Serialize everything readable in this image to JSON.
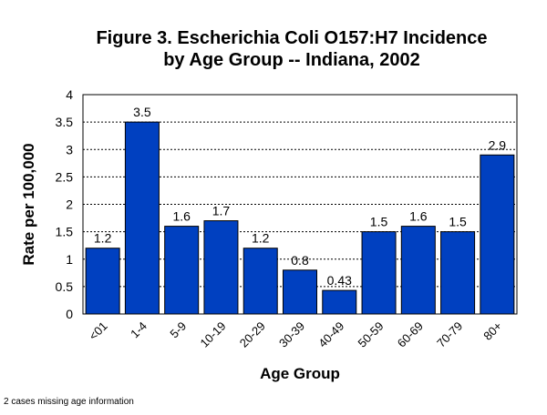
{
  "chart_data": {
    "type": "bar",
    "title_line1": "Figure 3. Escherichia Coli O157:H7 Incidence",
    "title_line2": "by Age Group -- Indiana, 2002",
    "xlabel": "Age Group",
    "ylabel": "Rate per 100,000",
    "categories": [
      "<01",
      "1-4",
      "5-9",
      "10-19",
      "20-29",
      "30-39",
      "40-49",
      "50-59",
      "60-69",
      "70-79",
      "80+"
    ],
    "values": [
      1.2,
      3.5,
      1.6,
      1.7,
      1.2,
      0.8,
      0.43,
      1.5,
      1.6,
      1.5,
      2.9
    ],
    "data_labels": [
      "1.2",
      "3.5",
      "1.6",
      "1.7",
      "1.2",
      "0.8",
      "0.43",
      "1.5",
      "1.6",
      "1.5",
      "2.9"
    ],
    "ylim": [
      0,
      4
    ],
    "yticks": [
      "0",
      "0.5",
      "1",
      "1.5",
      "2",
      "2.5",
      "3",
      "3.5",
      "4"
    ],
    "grid": "horizontal dashed",
    "bar_color": "#0040C0"
  },
  "footnote": "2 cases missing age information"
}
